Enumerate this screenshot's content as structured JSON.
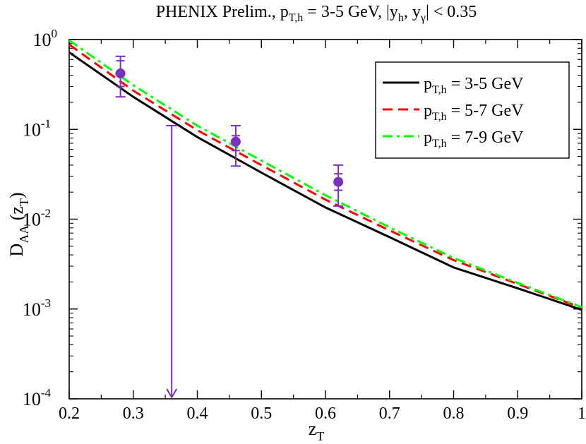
{
  "chart_data": {
    "type": "line",
    "title": {
      "main": "PHENIX Prelim., p",
      "s1": "T,h",
      "mid": " = 3-5 GeV, |y",
      "s2": "h",
      "mid2": ", y",
      "s3": "γ",
      "end": "| < 0.35"
    },
    "xlabel": {
      "main": "z",
      "sub": "T"
    },
    "ylabel": {
      "main": "D",
      "sub": "AA",
      "arg": " (z",
      "argsub": "T",
      "close": ")"
    },
    "xlim": [
      0.2,
      1.0
    ],
    "ylim": [
      0.0001,
      1
    ],
    "yscale": "log",
    "x_ticks": [
      "0.2",
      "0.3",
      "0.4",
      "0.5",
      "0.6",
      "0.7",
      "0.8",
      "0.9",
      "1"
    ],
    "y_ticks": [
      {
        "base": "10",
        "exp": "-4",
        "value": 0.0001
      },
      {
        "base": "10",
        "exp": "-3",
        "value": 0.001
      },
      {
        "base": "10",
        "exp": "-2",
        "value": 0.01
      },
      {
        "base": "10",
        "exp": "-1",
        "value": 0.1
      },
      {
        "base": "10",
        "exp": "0",
        "value": 1
      }
    ],
    "series": [
      {
        "name_main": "p",
        "name_sub": "T,h",
        "name_rest": " = 3-5 GeV",
        "color": "#000000",
        "dash": "none",
        "x": [
          0.2,
          0.3,
          0.4,
          0.5,
          0.6,
          0.7,
          0.8,
          0.9,
          1.0
        ],
        "y": [
          0.72,
          0.23,
          0.082,
          0.033,
          0.0135,
          0.0063,
          0.0029,
          0.0017,
          0.00098
        ]
      },
      {
        "name_main": "p",
        "name_sub": "T,h",
        "name_rest": " = 5-7 GeV",
        "color": "#ff0000",
        "dash": "dashed",
        "x": [
          0.2,
          0.3,
          0.4,
          0.5,
          0.6,
          0.7,
          0.8,
          0.9,
          1.0
        ],
        "y": [
          0.88,
          0.27,
          0.098,
          0.04,
          0.0165,
          0.0075,
          0.0035,
          0.0019,
          0.00103
        ]
      },
      {
        "name_main": "p",
        "name_sub": "T,h",
        "name_rest": " = 7-9 GeV",
        "color": "#00ff00",
        "dash": "dashdot",
        "x": [
          0.2,
          0.3,
          0.4,
          0.5,
          0.6,
          0.7,
          0.8,
          0.9,
          1.0
        ],
        "y": [
          0.98,
          0.31,
          0.11,
          0.045,
          0.0185,
          0.0081,
          0.0037,
          0.00195,
          0.00105
        ]
      }
    ],
    "data_points": {
      "color": "#7b2fbe",
      "points": [
        {
          "x": 0.28,
          "y": 0.42,
          "stat_lo": 0.3,
          "stat_hi": 0.58,
          "sys_lo": 0.23,
          "sys_hi": 0.65
        },
        {
          "x": 0.46,
          "y": 0.073,
          "stat_lo": 0.058,
          "stat_hi": 0.085,
          "sys_lo": 0.039,
          "sys_hi": 0.11
        },
        {
          "x": 0.62,
          "y": 0.026,
          "stat_lo": 0.021,
          "stat_hi": 0.032,
          "sys_lo": 0.014,
          "sys_hi": 0.04
        }
      ],
      "upper_limit": {
        "x": 0.36,
        "y_from": 0.11,
        "y_to": 0.0001
      }
    },
    "legend_position": "top-right",
    "grid": false
  }
}
